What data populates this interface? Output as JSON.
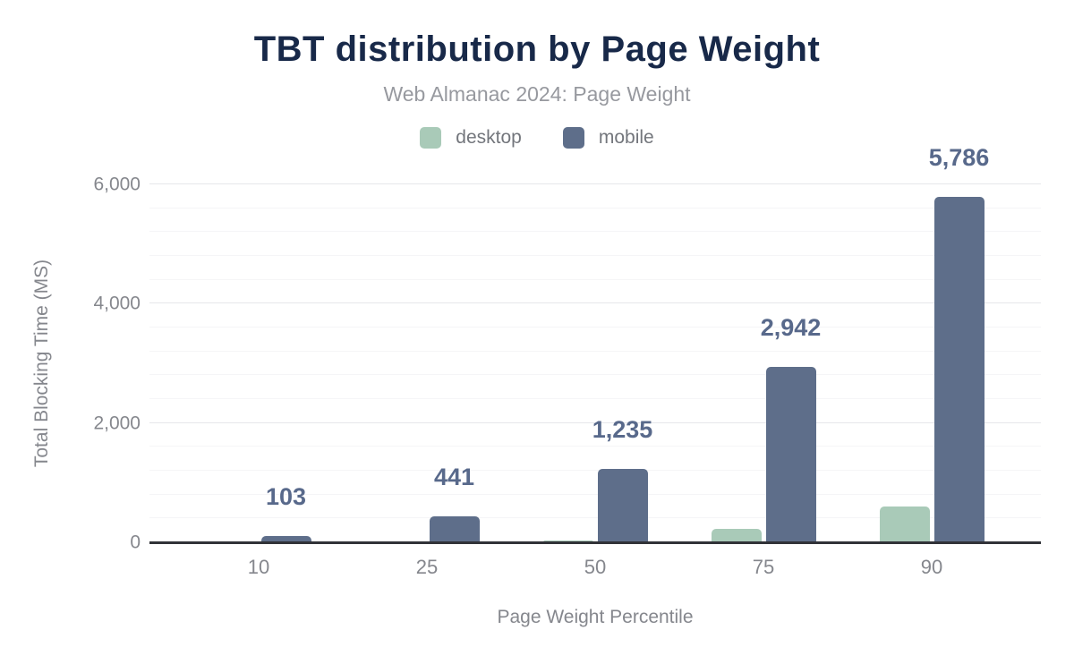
{
  "title": "TBT distribution by Page Weight",
  "subtitle": "Web Almanac 2024: Page Weight",
  "colors": {
    "title": "#182949",
    "subtitle": "#97999f",
    "axis_text": "#85878d",
    "data_label": "#58698b",
    "axis_line": "#313338",
    "desktop": "#a9cab8",
    "mobile": "#5e6e8a"
  },
  "chart_data": {
    "type": "bar",
    "title": "TBT distribution by Page Weight",
    "subtitle": "Web Almanac 2024: Page Weight",
    "categories": [
      "10",
      "25",
      "50",
      "75",
      "90"
    ],
    "series": [
      {
        "name": "desktop",
        "color": "#a9cab8",
        "values": [
          0,
          5,
          30,
          220,
          600
        ],
        "values_estimated_from_pixels": true,
        "labels_shown": false,
        "labels": []
      },
      {
        "name": "mobile",
        "color": "#5e6e8a",
        "values": [
          103,
          441,
          1235,
          2942,
          5786
        ],
        "values_estimated_from_pixels": false,
        "labels_shown": true,
        "labels": [
          "103",
          "441",
          "1,235",
          "2,942",
          "5,786"
        ]
      }
    ],
    "xlabel": "Page Weight Percentile",
    "ylabel": "Total Blocking Time (MS)",
    "ylim": [
      0,
      6000
    ],
    "ytick_values": [
      0,
      2000,
      4000,
      6000
    ],
    "ytick_labels": [
      "0",
      "2,000",
      "4,000",
      "6,000"
    ],
    "minor_gridline_interval": 400,
    "major_gridline_interval": 2000,
    "grid": true,
    "legend_position": "top"
  }
}
